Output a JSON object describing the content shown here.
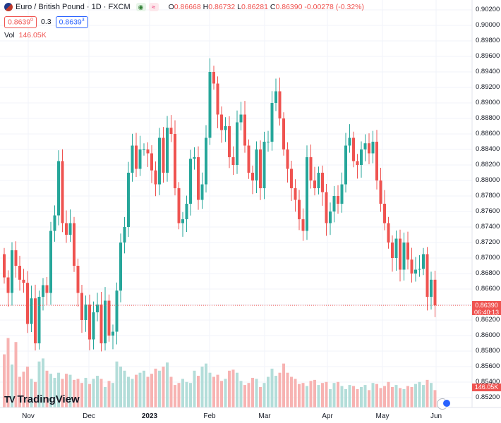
{
  "header": {
    "title": "Euro / British Pound · 1D · FXCM",
    "ohlc": {
      "o_label": "O",
      "o": "0.86668",
      "h_label": "H",
      "h": "0.86732",
      "l_label": "L",
      "l": "0.86281",
      "c_label": "C",
      "c": "0.86390",
      "change": "-0.00278 (-0.32%)"
    },
    "bid": "0.8639",
    "bid_sup": "0",
    "spread": "0.3",
    "ask": "0.8639",
    "ask_sup": "3",
    "vol_label": "Vol",
    "vol_value": "146.05K"
  },
  "colors": {
    "up": "#26a69a",
    "down": "#ef5350",
    "vol_up": "#b3ddd9",
    "vol_down": "#f7b3b2",
    "grid": "#f0f3fa"
  },
  "price_axis": {
    "ticks": [
      "0.90200",
      "0.90000",
      "0.89800",
      "0.89600",
      "0.89400",
      "0.89200",
      "0.89000",
      "0.88800",
      "0.88600",
      "0.88400",
      "0.88200",
      "0.88000",
      "0.87800",
      "0.87600",
      "0.87400",
      "0.87200",
      "0.87000",
      "0.86800",
      "0.86600",
      "0.86400",
      "0.86200",
      "0.86000",
      "0.85800",
      "0.85600",
      "0.85400",
      "0.85200"
    ],
    "current_price": "0.86390",
    "countdown": "06:40:13",
    "volume_tag": "146.05K"
  },
  "time_axis": {
    "labels": [
      {
        "text": "Nov",
        "bold": false
      },
      {
        "text": "Dec",
        "bold": false
      },
      {
        "text": "2023",
        "bold": true
      },
      {
        "text": "Feb",
        "bold": false
      },
      {
        "text": "Mar",
        "bold": false
      },
      {
        "text": "Apr",
        "bold": false
      },
      {
        "text": "May",
        "bold": false
      },
      {
        "text": "Jun",
        "bold": false
      }
    ]
  },
  "branding": {
    "logo_text": "TradingView",
    "logo_mark": "TV"
  },
  "chart_data": {
    "type": "candlestick",
    "ylim": [
      0.8512,
      0.9025
    ],
    "close_series": [
      0.8675,
      0.8655,
      0.871,
      0.869,
      0.8672,
      0.8668,
      0.8615,
      0.8648,
      0.859,
      0.865,
      0.8665,
      0.8655,
      0.8735,
      0.8755,
      0.8825,
      0.8745,
      0.873,
      0.8745,
      0.869,
      0.8655,
      0.862,
      0.864,
      0.8595,
      0.863,
      0.864,
      0.859,
      0.8645,
      0.86,
      0.8605,
      0.8658,
      0.872,
      0.874,
      0.881,
      0.8845,
      0.8815,
      0.884,
      0.884,
      0.8835,
      0.8813,
      0.8795,
      0.8855,
      0.881,
      0.8868,
      0.886,
      0.879,
      0.8745,
      0.875,
      0.877,
      0.8828,
      0.883,
      0.8775,
      0.8795,
      0.8855,
      0.894,
      0.8925,
      0.8885,
      0.8865,
      0.887,
      0.883,
      0.882,
      0.8875,
      0.8885,
      0.8845,
      0.881,
      0.88,
      0.884,
      0.879,
      0.885,
      0.885,
      0.89,
      0.8915,
      0.888,
      0.884,
      0.8815,
      0.879,
      0.8775,
      0.875,
      0.8735,
      0.883,
      0.88,
      0.879,
      0.881,
      0.8785,
      0.8745,
      0.876,
      0.878,
      0.877,
      0.8795,
      0.8845,
      0.8855,
      0.8825,
      0.882,
      0.884,
      0.8848,
      0.8835,
      0.885,
      0.88,
      0.877,
      0.8745,
      0.872,
      0.87,
      0.8725,
      0.8685,
      0.872,
      0.8698,
      0.868,
      0.8685,
      0.8686,
      0.8705,
      0.865,
      0.8672,
      0.8639
    ],
    "volume_series": [
      0.52,
      0.68,
      0.42,
      0.64,
      0.3,
      0.35,
      0.4,
      0.28,
      0.25,
      0.45,
      0.48,
      0.36,
      0.33,
      0.29,
      0.34,
      0.28,
      0.33,
      0.32,
      0.27,
      0.28,
      0.24,
      0.29,
      0.23,
      0.28,
      0.31,
      0.28,
      0.2,
      0.26,
      0.24,
      0.45,
      0.4,
      0.36,
      0.3,
      0.28,
      0.32,
      0.34,
      0.36,
      0.3,
      0.33,
      0.38,
      0.36,
      0.4,
      0.44,
      0.3,
      0.22,
      0.24,
      0.28,
      0.25,
      0.24,
      0.36,
      0.31,
      0.4,
      0.43,
      0.34,
      0.3,
      0.32,
      0.26,
      0.28,
      0.36,
      0.37,
      0.34,
      0.26,
      0.22,
      0.24,
      0.29,
      0.28,
      0.2,
      0.24,
      0.3,
      0.38,
      0.31,
      0.34,
      0.43,
      0.34,
      0.3,
      0.28,
      0.23,
      0.24,
      0.21,
      0.26,
      0.27,
      0.22,
      0.24,
      0.25,
      0.18,
      0.24,
      0.25,
      0.21,
      0.18,
      0.22,
      0.21,
      0.18,
      0.2,
      0.22,
      0.17,
      0.24,
      0.23,
      0.19,
      0.21,
      0.25,
      0.2,
      0.22,
      0.19,
      0.18,
      0.21,
      0.2,
      0.23,
      0.25,
      0.22,
      0.27,
      0.24,
      0.17
    ]
  }
}
